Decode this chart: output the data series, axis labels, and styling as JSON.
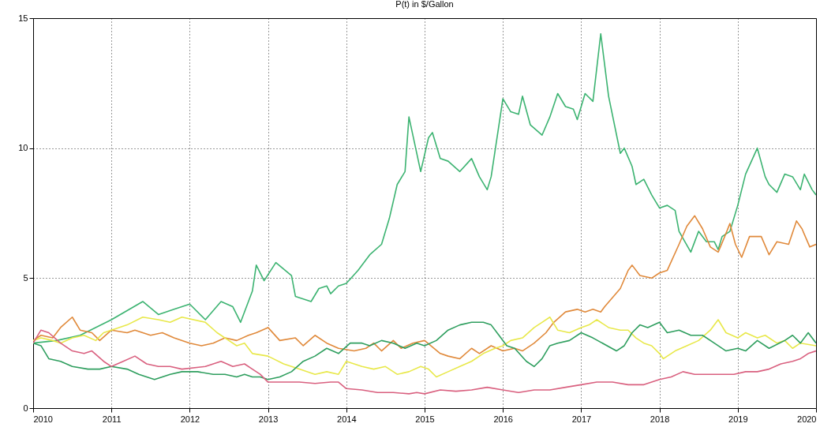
{
  "chart_data": {
    "type": "line",
    "title": "P(t) in $/Gallon",
    "xlim": [
      2010,
      2020
    ],
    "xticks": [
      2010,
      2011,
      2012,
      2013,
      2014,
      2015,
      2016,
      2017,
      2018,
      2019,
      2020
    ],
    "ylim": [
      0,
      15
    ],
    "yticks": [
      0,
      5,
      10,
      15
    ],
    "grid": true,
    "legend": false,
    "series": [
      {
        "color": "#3cb371",
        "x": [
          2010,
          2010.3,
          2010.6,
          2011,
          2011.4,
          2011.6,
          2011.8,
          2012,
          2012.2,
          2012.4,
          2012.55,
          2012.65,
          2012.8,
          2012.85,
          2012.95,
          2013.1,
          2013.3,
          2013.35,
          2013.55,
          2013.65,
          2013.75,
          2013.8,
          2013.9,
          2014,
          2014.15,
          2014.3,
          2014.45,
          2014.55,
          2014.65,
          2014.75,
          2014.8,
          2014.95,
          2015.05,
          2015.1,
          2015.2,
          2015.3,
          2015.45,
          2015.6,
          2015.7,
          2015.8,
          2015.85,
          2015.95,
          2016,
          2016.1,
          2016.2,
          2016.25,
          2016.35,
          2016.5,
          2016.6,
          2016.7,
          2016.8,
          2016.9,
          2016.95,
          2017.05,
          2017.15,
          2017.25,
          2017.35,
          2017.5,
          2017.55,
          2017.65,
          2017.7,
          2017.8,
          2017.9,
          2018,
          2018.1,
          2018.2,
          2018.25,
          2018.4,
          2018.5,
          2018.6,
          2018.7,
          2018.75,
          2018.8,
          2018.9,
          2019,
          2019.1,
          2019.25,
          2019.35,
          2019.4,
          2019.5,
          2019.6,
          2019.7,
          2019.8,
          2019.85,
          2019.95,
          2020
        ],
        "values": [
          2.5,
          2.6,
          2.8,
          3.4,
          4.1,
          3.6,
          3.8,
          4.0,
          3.4,
          4.1,
          3.9,
          3.3,
          4.5,
          5.5,
          4.9,
          5.6,
          5.1,
          4.3,
          4.1,
          4.6,
          4.7,
          4.4,
          4.7,
          4.8,
          5.3,
          5.9,
          6.3,
          7.3,
          8.6,
          9.1,
          11.2,
          9.1,
          10.4,
          10.6,
          9.6,
          9.5,
          9.1,
          9.6,
          8.9,
          8.4,
          8.9,
          10.9,
          11.9,
          11.4,
          11.3,
          12.0,
          10.9,
          10.5,
          11.2,
          12.1,
          11.6,
          11.5,
          11.1,
          12.1,
          11.8,
          14.4,
          12.0,
          9.8,
          10.0,
          9.3,
          8.6,
          8.8,
          8.2,
          7.7,
          7.8,
          7.6,
          6.8,
          6.0,
          6.8,
          6.4,
          6.4,
          6.1,
          6.6,
          6.8,
          7.8,
          9.0,
          10.0,
          8.9,
          8.6,
          8.3,
          9.0,
          8.9,
          8.4,
          9.0,
          8.4,
          8.2
        ]
      },
      {
        "color": "#e0893a",
        "x": [
          2010,
          2010.1,
          2010.25,
          2010.35,
          2010.5,
          2010.6,
          2010.75,
          2010.85,
          2011,
          2011.2,
          2011.3,
          2011.5,
          2011.65,
          2011.8,
          2012,
          2012.15,
          2012.3,
          2012.45,
          2012.6,
          2012.75,
          2012.85,
          2013,
          2013.15,
          2013.35,
          2013.45,
          2013.6,
          2013.75,
          2013.9,
          2014.1,
          2014.25,
          2014.35,
          2014.45,
          2014.6,
          2014.7,
          2014.85,
          2015,
          2015.2,
          2015.3,
          2015.45,
          2015.6,
          2015.7,
          2015.85,
          2016,
          2016.15,
          2016.25,
          2016.4,
          2016.55,
          2016.65,
          2016.8,
          2016.95,
          2017.05,
          2017.15,
          2017.25,
          2017.3,
          2017.5,
          2017.6,
          2017.65,
          2017.75,
          2017.9,
          2018,
          2018.1,
          2018.25,
          2018.35,
          2018.45,
          2018.55,
          2018.65,
          2018.75,
          2018.82,
          2018.9,
          2018.97,
          2019.05,
          2019.15,
          2019.3,
          2019.4,
          2019.5,
          2019.65,
          2019.75,
          2019.82,
          2019.92,
          2020
        ],
        "values": [
          2.6,
          2.8,
          2.7,
          3.1,
          3.5,
          3.0,
          2.9,
          2.6,
          3.0,
          2.9,
          3.0,
          2.8,
          2.9,
          2.7,
          2.5,
          2.4,
          2.5,
          2.7,
          2.6,
          2.8,
          2.9,
          3.1,
          2.6,
          2.7,
          2.4,
          2.8,
          2.5,
          2.3,
          2.2,
          2.3,
          2.5,
          2.2,
          2.6,
          2.3,
          2.5,
          2.6,
          2.1,
          2.0,
          1.9,
          2.3,
          2.1,
          2.4,
          2.2,
          2.3,
          2.2,
          2.5,
          2.9,
          3.3,
          3.7,
          3.8,
          3.7,
          3.8,
          3.7,
          3.9,
          4.6,
          5.3,
          5.5,
          5.1,
          5.0,
          5.2,
          5.3,
          6.3,
          7.0,
          7.4,
          6.9,
          6.2,
          6.0,
          6.5,
          7.1,
          6.3,
          5.8,
          6.6,
          6.6,
          5.9,
          6.4,
          6.3,
          7.2,
          6.9,
          6.2,
          6.3
        ]
      },
      {
        "color": "#e8e84a",
        "x": [
          2010,
          2010.1,
          2010.25,
          2010.35,
          2010.5,
          2010.65,
          2010.8,
          2010.9,
          2011,
          2011.2,
          2011.4,
          2011.6,
          2011.75,
          2011.9,
          2012.2,
          2012.35,
          2012.5,
          2012.6,
          2012.7,
          2012.75,
          2012.8,
          2013,
          2013.2,
          2013.4,
          2013.6,
          2013.75,
          2013.9,
          2014,
          2014.2,
          2014.35,
          2014.5,
          2014.65,
          2014.8,
          2014.95,
          2015.05,
          2015.15,
          2015.3,
          2015.45,
          2015.6,
          2015.75,
          2015.9,
          2016,
          2016.1,
          2016.25,
          2016.4,
          2016.5,
          2016.6,
          2016.7,
          2016.85,
          2017,
          2017.1,
          2017.2,
          2017.35,
          2017.5,
          2017.6,
          2017.7,
          2017.8,
          2017.9,
          2018,
          2018.05,
          2018.2,
          2018.35,
          2018.5,
          2018.65,
          2018.75,
          2018.85,
          2019,
          2019.1,
          2019.25,
          2019.35,
          2019.5,
          2019.6,
          2019.7,
          2019.8,
          2020
        ],
        "values": [
          2.6,
          2.7,
          2.6,
          2.5,
          2.7,
          2.8,
          2.6,
          2.9,
          3.0,
          3.2,
          3.5,
          3.4,
          3.3,
          3.5,
          3.3,
          2.9,
          2.6,
          2.4,
          2.5,
          2.3,
          2.1,
          2.0,
          1.7,
          1.5,
          1.3,
          1.4,
          1.3,
          1.8,
          1.6,
          1.5,
          1.6,
          1.3,
          1.4,
          1.6,
          1.5,
          1.2,
          1.4,
          1.6,
          1.8,
          2.1,
          2.3,
          2.4,
          2.6,
          2.7,
          3.1,
          3.3,
          3.5,
          3.0,
          2.9,
          3.1,
          3.2,
          3.4,
          3.1,
          3.0,
          3.0,
          2.7,
          2.5,
          2.4,
          2.1,
          1.9,
          2.2,
          2.4,
          2.6,
          3.0,
          3.4,
          2.9,
          2.7,
          2.9,
          2.7,
          2.8,
          2.5,
          2.6,
          2.3,
          2.5,
          2.4
        ]
      },
      {
        "color": "#2e9e5e",
        "x": [
          2010,
          2010.1,
          2010.2,
          2010.35,
          2010.5,
          2010.7,
          2010.85,
          2011,
          2011.2,
          2011.35,
          2011.45,
          2011.55,
          2011.75,
          2011.9,
          2012.1,
          2012.3,
          2012.45,
          2012.6,
          2012.7,
          2012.8,
          2012.9,
          2013,
          2013.15,
          2013.3,
          2013.45,
          2013.6,
          2013.75,
          2013.9,
          2014.05,
          2014.2,
          2014.3,
          2014.45,
          2014.6,
          2014.75,
          2014.9,
          2015,
          2015.15,
          2015.3,
          2015.45,
          2015.6,
          2015.75,
          2015.85,
          2015.95,
          2016.05,
          2016.15,
          2016.3,
          2016.4,
          2016.5,
          2016.6,
          2016.7,
          2016.85,
          2017,
          2017.15,
          2017.45,
          2017.55,
          2017.65,
          2017.75,
          2017.85,
          2018,
          2018.1,
          2018.25,
          2018.4,
          2018.55,
          2018.7,
          2018.85,
          2019,
          2019.1,
          2019.25,
          2019.4,
          2019.6,
          2019.7,
          2019.8,
          2019.9,
          2020
        ],
        "values": [
          2.5,
          2.4,
          1.9,
          1.8,
          1.6,
          1.5,
          1.5,
          1.6,
          1.5,
          1.3,
          1.2,
          1.1,
          1.3,
          1.4,
          1.4,
          1.3,
          1.3,
          1.2,
          1.3,
          1.2,
          1.2,
          1.1,
          1.2,
          1.4,
          1.8,
          2.0,
          2.3,
          2.1,
          2.5,
          2.5,
          2.4,
          2.6,
          2.5,
          2.3,
          2.5,
          2.4,
          2.6,
          3.0,
          3.2,
          3.3,
          3.3,
          3.2,
          2.8,
          2.4,
          2.3,
          1.8,
          1.6,
          1.9,
          2.4,
          2.5,
          2.6,
          2.9,
          2.7,
          2.2,
          2.4,
          2.9,
          3.2,
          3.1,
          3.3,
          2.9,
          3.0,
          2.8,
          2.8,
          2.5,
          2.2,
          2.3,
          2.2,
          2.6,
          2.3,
          2.6,
          2.8,
          2.5,
          2.9,
          2.5
        ]
      },
      {
        "color": "#d9607f",
        "x": [
          2010,
          2010.1,
          2010.2,
          2010.35,
          2010.5,
          2010.65,
          2010.75,
          2010.9,
          2011,
          2011.15,
          2011.3,
          2011.45,
          2011.6,
          2011.75,
          2011.9,
          2012.2,
          2012.4,
          2012.55,
          2012.7,
          2012.8,
          2012.9,
          2013,
          2013.2,
          2013.4,
          2013.6,
          2013.8,
          2013.9,
          2014,
          2014.2,
          2014.4,
          2014.6,
          2014.8,
          2014.9,
          2015,
          2015.2,
          2015.4,
          2015.6,
          2015.8,
          2016,
          2016.2,
          2016.4,
          2016.6,
          2016.8,
          2017,
          2017.2,
          2017.4,
          2017.6,
          2017.8,
          2017.9,
          2018,
          2018.15,
          2018.3,
          2018.45,
          2018.6,
          2018.8,
          2018.95,
          2019.1,
          2019.25,
          2019.4,
          2019.55,
          2019.7,
          2019.8,
          2019.9,
          2020
        ],
        "values": [
          2.5,
          3.0,
          2.9,
          2.5,
          2.2,
          2.1,
          2.2,
          1.8,
          1.6,
          1.8,
          2.0,
          1.7,
          1.6,
          1.6,
          1.5,
          1.6,
          1.8,
          1.6,
          1.7,
          1.5,
          1.3,
          1.0,
          1.0,
          1.0,
          0.95,
          1.0,
          1.0,
          0.75,
          0.7,
          0.6,
          0.6,
          0.55,
          0.6,
          0.55,
          0.7,
          0.65,
          0.7,
          0.8,
          0.7,
          0.6,
          0.7,
          0.7,
          0.8,
          0.9,
          1.0,
          1.0,
          0.9,
          0.9,
          1.0,
          1.1,
          1.2,
          1.4,
          1.3,
          1.3,
          1.3,
          1.3,
          1.4,
          1.4,
          1.5,
          1.7,
          1.8,
          1.9,
          2.1,
          2.2
        ]
      }
    ]
  }
}
